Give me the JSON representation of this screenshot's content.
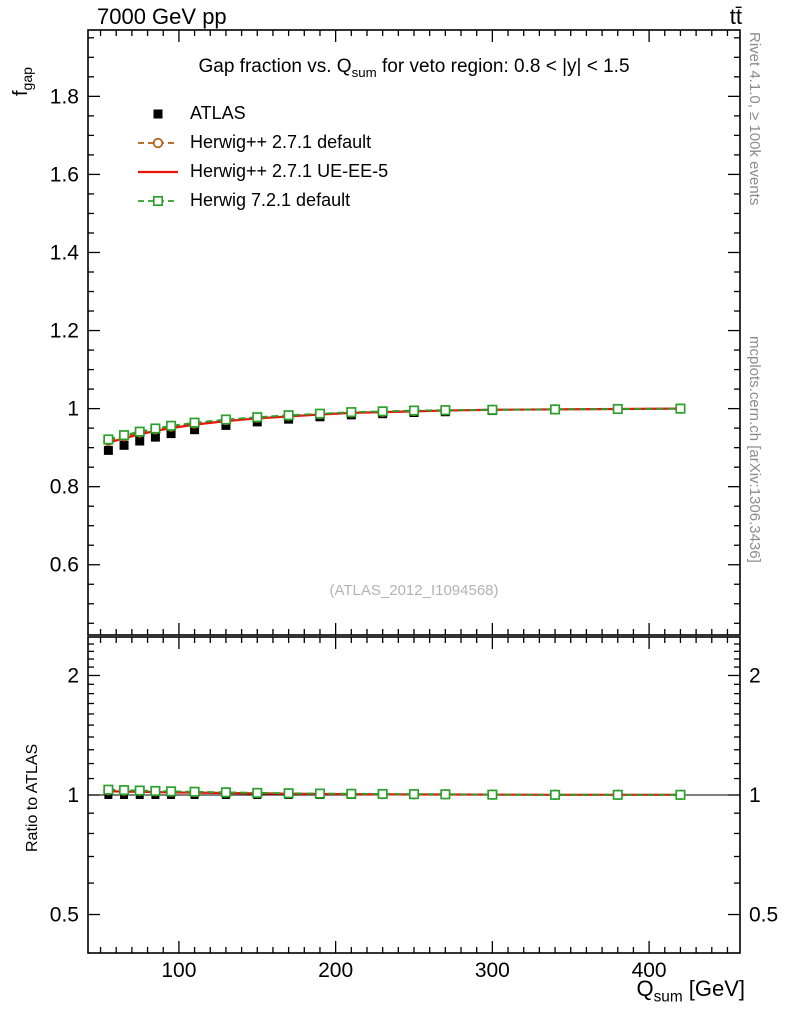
{
  "header": {
    "left": "7000 GeV pp",
    "right": "tt̄"
  },
  "title": {
    "pre": "Gap fraction vs. Q",
    "sub": "sum",
    "post": " for veto region: 0.8 < |y| < 1.5"
  },
  "watermark": "(ATLAS_2012_I1094568)",
  "side_texts": {
    "rivet": "Rivet 4.1.0, ≥ 100k events",
    "mcplots": "mcplots.cern.ch [arXiv:1306.3436]"
  },
  "axis_labels": {
    "y_main": {
      "main": "f",
      "sub": "gap"
    },
    "y_ratio": "Ratio to ATLAS",
    "x": {
      "main": "Q",
      "sub": "sum",
      "unit": " [GeV]"
    }
  },
  "chart_data": {
    "type": "line",
    "title": "Gap fraction vs. Q_sum for veto region: 0.8 < |y| < 1.5",
    "xlabel": "Q_sum [GeV]",
    "ylabel": "f_gap",
    "ratio_ylabel": "Ratio to ATLAS",
    "x_scale": "linear",
    "ratio_scale": "log",
    "x_range": [
      42,
      458
    ],
    "y_range": [
      0.42,
      1.97
    ],
    "ratio_range": [
      0.4,
      2.5
    ],
    "x_ticks": [
      100,
      200,
      300,
      400
    ],
    "y_ticks": [
      0.6,
      0.8,
      1,
      1.2,
      1.4,
      1.6,
      1.8
    ],
    "ratio_ticks": [
      0.5,
      1,
      2
    ],
    "x": [
      55,
      65,
      75,
      85,
      95,
      110,
      130,
      150,
      170,
      190,
      210,
      230,
      250,
      270,
      300,
      340,
      380,
      420
    ],
    "series": [
      {
        "name": "ATLAS",
        "role": "data",
        "color": "#000000",
        "marker": "filled-square",
        "line": null,
        "values": [
          0.893,
          0.906,
          0.917,
          0.927,
          0.936,
          0.946,
          0.957,
          0.966,
          0.973,
          0.979,
          0.984,
          0.987,
          0.99,
          0.992,
          0.995,
          0.997,
          0.998,
          0.999
        ],
        "errors": [
          0.01,
          0.009,
          0.008,
          0.008,
          0.007,
          0.006,
          0.006,
          0.005,
          0.005,
          0.004,
          0.004,
          0.004,
          0.003,
          0.003,
          0.003,
          0.003,
          0.002,
          0.002
        ]
      },
      {
        "name": "Herwig++ 2.7.1 default",
        "role": "mc",
        "color": "#b05c10",
        "marker": "open-circle",
        "line": "dashed",
        "values": [
          0.918,
          0.929,
          0.939,
          0.947,
          0.954,
          0.962,
          0.971,
          0.977,
          0.982,
          0.986,
          0.99,
          0.992,
          0.994,
          0.996,
          0.997,
          0.998,
          0.999,
          1.0
        ]
      },
      {
        "name": "Herwig++ 2.7.1 UE-EE-5",
        "role": "mc",
        "color": "#e8150d",
        "marker": "none",
        "line": "solid",
        "values": [
          0.913,
          0.924,
          0.934,
          0.943,
          0.95,
          0.959,
          0.968,
          0.975,
          0.98,
          0.985,
          0.989,
          0.991,
          0.993,
          0.995,
          0.997,
          0.998,
          0.999,
          1.0
        ]
      },
      {
        "name": "Herwig 7.2.1 default",
        "role": "mc",
        "color": "#2ca02c",
        "marker": "open-square",
        "line": "dashed",
        "values": [
          0.921,
          0.932,
          0.941,
          0.949,
          0.956,
          0.964,
          0.972,
          0.978,
          0.983,
          0.987,
          0.991,
          0.993,
          0.995,
          0.996,
          0.997,
          0.998,
          0.999,
          1.0
        ]
      }
    ]
  }
}
